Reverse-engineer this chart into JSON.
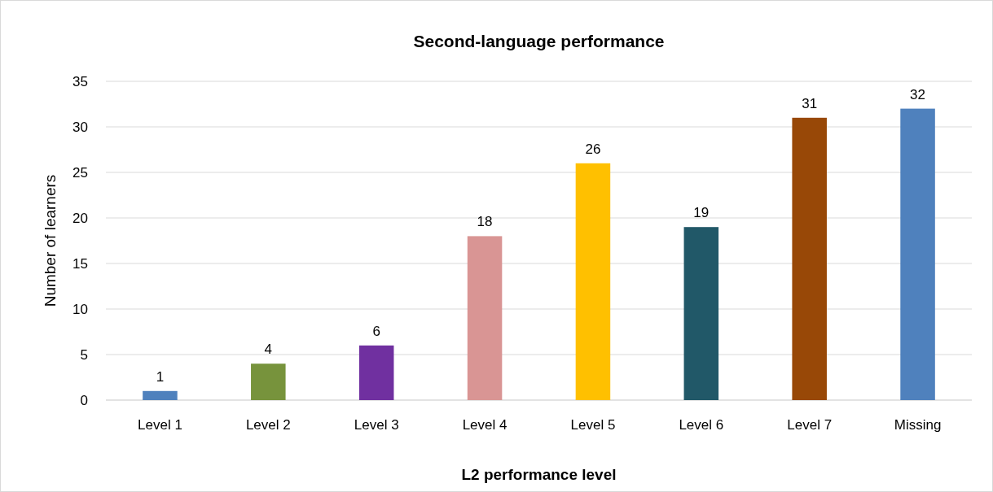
{
  "chart_data": {
    "type": "bar",
    "title": "Second-language performance",
    "xlabel": "L2 performance level",
    "ylabel": "Number of learners",
    "categories": [
      "Level 1",
      "Level 2",
      "Level 3",
      "Level 4",
      "Level 5",
      "Level 6",
      "Level 7",
      "Missing"
    ],
    "values": [
      1,
      4,
      6,
      18,
      26,
      19,
      31,
      32
    ],
    "colors": [
      "#4f81bd",
      "#77933c",
      "#7030a0",
      "#d99594",
      "#ffc000",
      "#215868",
      "#984807",
      "#4f81bd"
    ],
    "ylim": [
      0,
      35
    ],
    "yticks": [
      0,
      5,
      10,
      15,
      20,
      25,
      30,
      35
    ],
    "grid": "y",
    "data_labels": true
  }
}
